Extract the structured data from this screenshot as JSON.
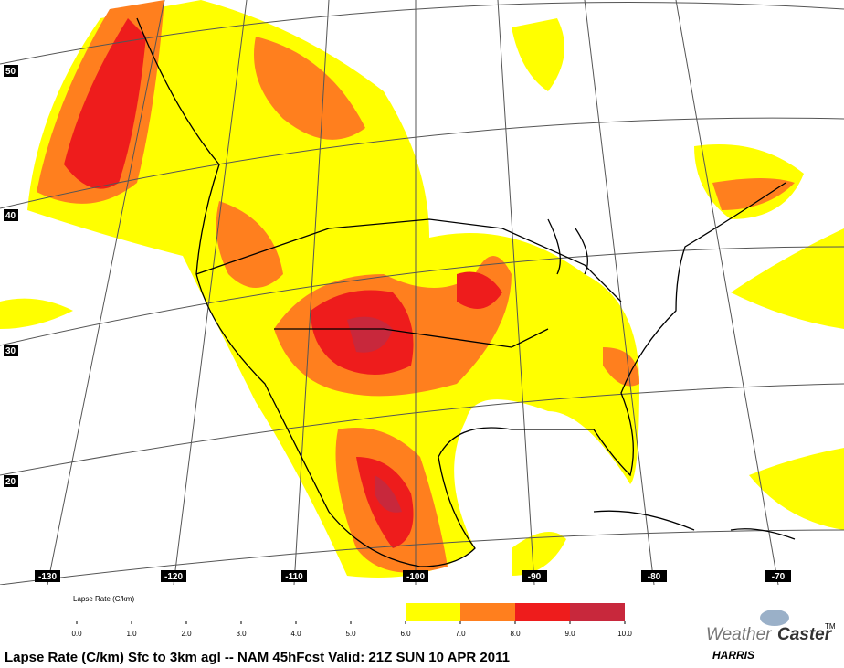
{
  "map": {
    "lat_labels": [
      "50",
      "40",
      "30",
      "20"
    ],
    "lon_labels": [
      "-130",
      "-120",
      "-110",
      "-100",
      "-90",
      "-80",
      "-70"
    ]
  },
  "legend": {
    "title": "Lapse Rate (C/km)",
    "ticks": [
      {
        "value": 0,
        "label": "0.0"
      },
      {
        "value": 1,
        "label": "1.0"
      },
      {
        "value": 2,
        "label": "2.0"
      },
      {
        "value": 3,
        "label": "3.0"
      },
      {
        "value": 4,
        "label": "4.0"
      },
      {
        "value": 5,
        "label": "5.0"
      },
      {
        "value": 6,
        "label": "6.0"
      },
      {
        "value": 7,
        "label": "7.0"
      },
      {
        "value": 8,
        "label": "8.0"
      },
      {
        "value": 9,
        "label": "9.0"
      },
      {
        "value": 10,
        "label": "10.0"
      }
    ],
    "bins": [
      {
        "from": 6,
        "to": 7,
        "color": "#ffff00"
      },
      {
        "from": 7,
        "to": 8,
        "color": "#ff7f1e"
      },
      {
        "from": 8,
        "to": 9,
        "color": "#ee1c1c"
      },
      {
        "from": 9,
        "to": 10,
        "color": "#c8283c"
      }
    ]
  },
  "footer": "Lapse Rate (C/km) Sfc to  3km agl -- NAM  45hFcst Valid: 21Z SUN 10 APR 2011",
  "logo": {
    "name_part1": "Weather",
    "name_part2": "Caster",
    "tm": "TM",
    "company": "HARRIS"
  }
}
